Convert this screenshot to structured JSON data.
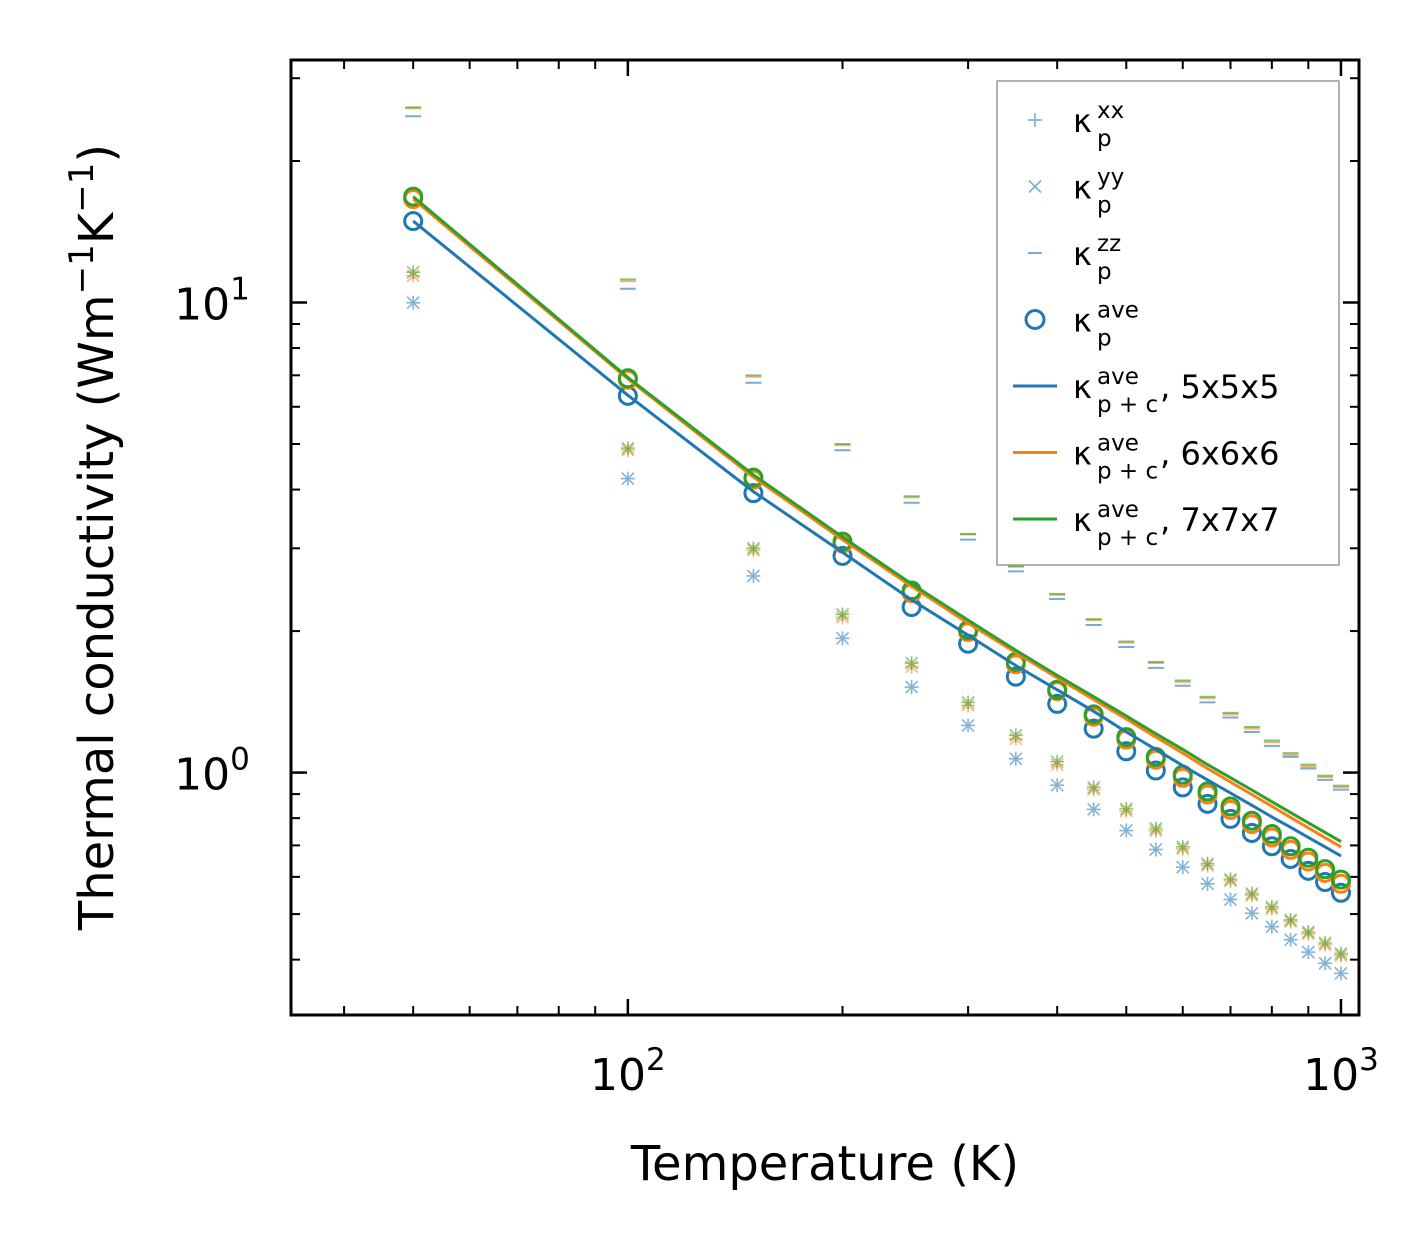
{
  "chart_data": {
    "type": "scatter",
    "title": "",
    "xlabel": "Temperature (K)",
    "ylabel": {
      "text": "Thermal conductivity (Wm",
      "exp1": "−1",
      "mid": "K",
      "exp2": "−1",
      "end": ")"
    },
    "xscale": "log",
    "yscale": "log",
    "xlim": [
      33.7,
      1060
    ],
    "ylim": [
      0.305,
      32.8
    ],
    "x_ticks": [
      {
        "base": "10",
        "exp": "2"
      },
      {
        "base": "10",
        "exp": "3"
      }
    ],
    "y_ticks": [
      {
        "base": "10",
        "exp": "0"
      },
      {
        "base": "10",
        "exp": "1"
      }
    ],
    "grid": false,
    "legend_position": "upper right",
    "x": [
      50,
      100,
      150,
      200,
      250,
      300,
      350,
      400,
      450,
      500,
      550,
      600,
      650,
      700,
      750,
      800,
      850,
      900,
      950,
      1000
    ],
    "series": [
      {
        "name": "κp^xx / κp^yy, 5x5x5",
        "marker": "plus-x",
        "color": "#1f77b4",
        "values": [
          9.99,
          4.22,
          2.62,
          1.93,
          1.52,
          1.26,
          1.07,
          0.94,
          0.835,
          0.753,
          0.686,
          0.629,
          0.58,
          0.537,
          0.502,
          0.47,
          0.441,
          0.415,
          0.393,
          0.374
        ]
      },
      {
        "name": "κp^xx / κp^yy, 6x6x6",
        "marker": "plus-x",
        "color": "#ff7f0e",
        "values": [
          11.4,
          4.85,
          2.97,
          2.14,
          1.68,
          1.39,
          1.18,
          1.04,
          0.92,
          0.828,
          0.752,
          0.688,
          0.634,
          0.588,
          0.548,
          0.513,
          0.482,
          0.454,
          0.43,
          0.408
        ]
      },
      {
        "name": "κp^xx / κp^yy, 7x7x7",
        "marker": "plus-x",
        "color": "#2ca02c",
        "values": [
          11.6,
          4.9,
          3.0,
          2.17,
          1.71,
          1.41,
          1.2,
          1.055,
          0.93,
          0.837,
          0.76,
          0.695,
          0.64,
          0.593,
          0.553,
          0.518,
          0.486,
          0.458,
          0.434,
          0.412
        ]
      },
      {
        "name": "κp^zz, 5x5x5",
        "marker": "dash",
        "color": "#1f77b4",
        "values": [
          24.9,
          10.7,
          6.75,
          4.85,
          3.75,
          3.13,
          2.68,
          2.34,
          2.06,
          1.85,
          1.67,
          1.53,
          1.41,
          1.31,
          1.22,
          1.14,
          1.08,
          1.02,
          0.965,
          0.92
        ]
      },
      {
        "name": "κp^zz, 6x6x6",
        "marker": "dash",
        "color": "#ff7f0e",
        "values": [
          25.9,
          11.1,
          6.95,
          4.97,
          3.85,
          3.21,
          2.74,
          2.39,
          2.11,
          1.89,
          1.71,
          1.56,
          1.44,
          1.33,
          1.24,
          1.16,
          1.09,
          1.03,
          0.978,
          0.932
        ]
      },
      {
        "name": "κp^zz, 7x7x7",
        "marker": "dash",
        "color": "#2ca02c",
        "values": [
          26.0,
          11.2,
          7.0,
          5.0,
          3.87,
          3.22,
          2.75,
          2.4,
          2.12,
          1.9,
          1.72,
          1.57,
          1.45,
          1.34,
          1.25,
          1.17,
          1.1,
          1.04,
          0.985,
          0.938
        ]
      },
      {
        "name": "κp^ave, 5x5x5",
        "marker": "circle",
        "color": "#1f77b4",
        "values": [
          14.9,
          6.33,
          3.93,
          2.89,
          2.25,
          1.88,
          1.6,
          1.4,
          1.24,
          1.11,
          1.01,
          0.93,
          0.858,
          0.797,
          0.744,
          0.697,
          0.655,
          0.618,
          0.585,
          0.555
        ]
      },
      {
        "name": "κp^ave, 6x6x6",
        "marker": "circle",
        "color": "#ff7f0e",
        "values": [
          16.6,
          6.85,
          4.2,
          3.07,
          2.41,
          1.99,
          1.7,
          1.49,
          1.315,
          1.175,
          1.065,
          0.975,
          0.898,
          0.833,
          0.777,
          0.728,
          0.685,
          0.647,
          0.612,
          0.58
        ]
      },
      {
        "name": "κp^ave, 7x7x7",
        "marker": "circle",
        "color": "#2ca02c",
        "values": [
          16.8,
          6.9,
          4.24,
          3.1,
          2.44,
          2.01,
          1.72,
          1.5,
          1.33,
          1.19,
          1.08,
          0.99,
          0.912,
          0.847,
          0.79,
          0.74,
          0.697,
          0.659,
          0.623,
          0.592
        ]
      }
    ],
    "lines": [
      {
        "label": "5x5x5",
        "color": "#1f77b4",
        "values": [
          14.9,
          6.35,
          3.96,
          2.94,
          2.33,
          1.96,
          1.69,
          1.5,
          1.35,
          1.22,
          1.12,
          1.035,
          0.965,
          0.905,
          0.852,
          0.805,
          0.765,
          0.728,
          0.695,
          0.665
        ]
      },
      {
        "label": "6x6x6",
        "color": "#ff7f0e",
        "values": [
          16.6,
          6.88,
          4.25,
          3.13,
          2.49,
          2.08,
          1.8,
          1.59,
          1.43,
          1.3,
          1.19,
          1.1,
          1.02,
          0.955,
          0.898,
          0.848,
          0.803,
          0.763,
          0.727,
          0.695
        ]
      },
      {
        "label": "7x7x7",
        "color": "#2ca02c",
        "values": [
          16.8,
          6.93,
          4.3,
          3.17,
          2.52,
          2.11,
          1.82,
          1.61,
          1.45,
          1.32,
          1.21,
          1.12,
          1.04,
          0.975,
          0.918,
          0.867,
          0.822,
          0.782,
          0.746,
          0.713
        ]
      }
    ],
    "legend": [
      {
        "symbol": "plus",
        "color": "#1f77b4",
        "base": "κ",
        "sup": "xx",
        "sub": "p",
        "suffix": ""
      },
      {
        "symbol": "x",
        "color": "#1f77b4",
        "base": "κ",
        "sup": "yy",
        "sub": "p",
        "suffix": ""
      },
      {
        "symbol": "dash",
        "color": "#1f77b4",
        "base": "κ",
        "sup": "zz",
        "sub": "p",
        "suffix": ""
      },
      {
        "symbol": "circle",
        "color": "#1f77b4",
        "base": "κ",
        "sup": "ave",
        "sub": "p",
        "suffix": ""
      },
      {
        "symbol": "line",
        "color": "#1f77b4",
        "base": "κ",
        "sup": "ave",
        "sub": "p + c",
        "suffix": ", 5x5x5"
      },
      {
        "symbol": "line",
        "color": "#ff7f0e",
        "base": "κ",
        "sup": "ave",
        "sub": "p + c",
        "suffix": ", 6x6x6"
      },
      {
        "symbol": "line",
        "color": "#2ca02c",
        "base": "κ",
        "sup": "ave",
        "sub": "p + c",
        "suffix": ", 7x7x7"
      }
    ]
  }
}
